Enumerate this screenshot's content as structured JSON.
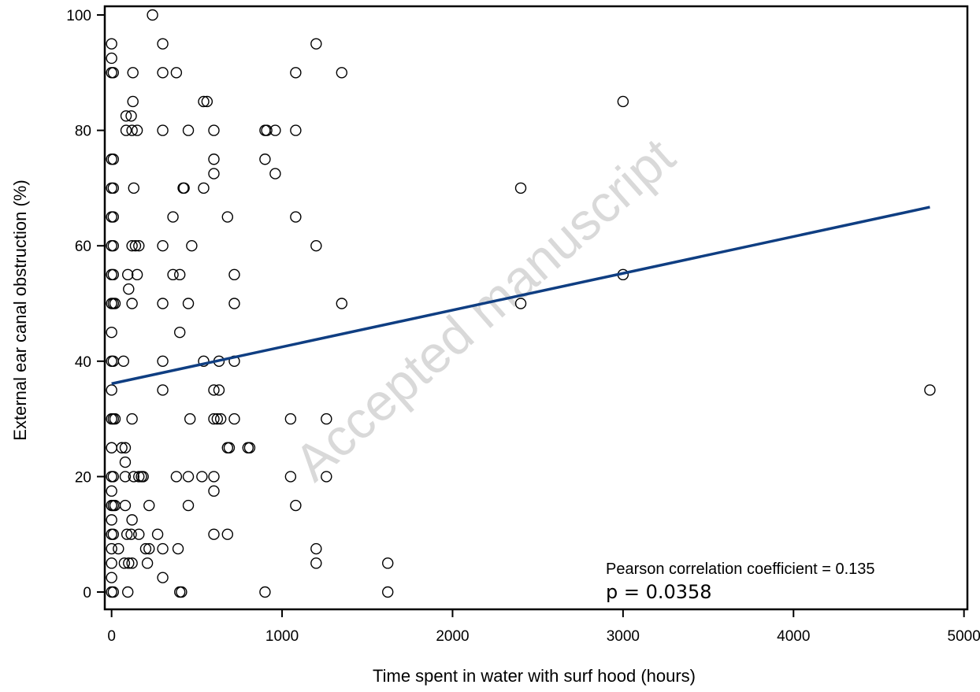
{
  "chart_data": {
    "type": "scatter",
    "title": "",
    "xlabel": "Time spent in water with surf hood (hours)",
    "ylabel": "External ear canal obstruction (%)",
    "xlim": [
      -40,
      5020
    ],
    "ylim": [
      -3,
      101.5
    ],
    "xticks": [
      0,
      1000,
      2000,
      3000,
      4000,
      5000
    ],
    "yticks": [
      0,
      20,
      40,
      60,
      80,
      100
    ],
    "xtick_labels": [
      "0",
      "1000",
      "2000",
      "3000",
      "4000",
      "5000"
    ],
    "ytick_labels": [
      "0",
      "20",
      "40",
      "60",
      "80",
      "100"
    ],
    "grid": false,
    "legend": "none",
    "points": [
      [
        0,
        95
      ],
      [
        0,
        92.5
      ],
      [
        0,
        90
      ],
      [
        0,
        75
      ],
      [
        0,
        70
      ],
      [
        0,
        65
      ],
      [
        0,
        60
      ],
      [
        0,
        55
      ],
      [
        0,
        50
      ],
      [
        0,
        45
      ],
      [
        0,
        40
      ],
      [
        0,
        35
      ],
      [
        0,
        30
      ],
      [
        0,
        25
      ],
      [
        0,
        20
      ],
      [
        0,
        17.5
      ],
      [
        0,
        15
      ],
      [
        0,
        12.5
      ],
      [
        0,
        10
      ],
      [
        0,
        7.5
      ],
      [
        0,
        5
      ],
      [
        0,
        2.5
      ],
      [
        0,
        0
      ],
      [
        10,
        90
      ],
      [
        10,
        75
      ],
      [
        10,
        70
      ],
      [
        10,
        65
      ],
      [
        10,
        60
      ],
      [
        10,
        55
      ],
      [
        10,
        50
      ],
      [
        10,
        40
      ],
      [
        10,
        30
      ],
      [
        10,
        20
      ],
      [
        10,
        15
      ],
      [
        10,
        10
      ],
      [
        10,
        0
      ],
      [
        20,
        30
      ],
      [
        20,
        15
      ],
      [
        20,
        50
      ],
      [
        40,
        7.5
      ],
      [
        60,
        25
      ],
      [
        70,
        40
      ],
      [
        75,
        5
      ],
      [
        80,
        22.5
      ],
      [
        80,
        25
      ],
      [
        80,
        20
      ],
      [
        80,
        15
      ],
      [
        85,
        82.5
      ],
      [
        85,
        80
      ],
      [
        90,
        10
      ],
      [
        95,
        55
      ],
      [
        95,
        0
      ],
      [
        100,
        5
      ],
      [
        100,
        52.5
      ],
      [
        115,
        82.5
      ],
      [
        115,
        10
      ],
      [
        120,
        80
      ],
      [
        120,
        60
      ],
      [
        120,
        50
      ],
      [
        120,
        30
      ],
      [
        120,
        12.5
      ],
      [
        120,
        5
      ],
      [
        125,
        90
      ],
      [
        125,
        85
      ],
      [
        130,
        70
      ],
      [
        130,
        20
      ],
      [
        140,
        60
      ],
      [
        150,
        80
      ],
      [
        150,
        55
      ],
      [
        160,
        60
      ],
      [
        160,
        20
      ],
      [
        160,
        10
      ],
      [
        175,
        20
      ],
      [
        185,
        20
      ],
      [
        200,
        7.5
      ],
      [
        210,
        5
      ],
      [
        220,
        7.5
      ],
      [
        220,
        15
      ],
      [
        240,
        100
      ],
      [
        270,
        10
      ],
      [
        300,
        95
      ],
      [
        300,
        90
      ],
      [
        300,
        80
      ],
      [
        300,
        60
      ],
      [
        300,
        50
      ],
      [
        300,
        40
      ],
      [
        300,
        35
      ],
      [
        300,
        7.5
      ],
      [
        300,
        2.5
      ],
      [
        360,
        65
      ],
      [
        360,
        55
      ],
      [
        380,
        90
      ],
      [
        380,
        20
      ],
      [
        390,
        7.5
      ],
      [
        400,
        55
      ],
      [
        400,
        45
      ],
      [
        400,
        0
      ],
      [
        410,
        0
      ],
      [
        420,
        70
      ],
      [
        425,
        70
      ],
      [
        450,
        80
      ],
      [
        450,
        50
      ],
      [
        450,
        20
      ],
      [
        450,
        15
      ],
      [
        460,
        30
      ],
      [
        470,
        60
      ],
      [
        530,
        20
      ],
      [
        540,
        85
      ],
      [
        540,
        70
      ],
      [
        540,
        40
      ],
      [
        560,
        85
      ],
      [
        600,
        80
      ],
      [
        600,
        75
      ],
      [
        600,
        72.5
      ],
      [
        600,
        35
      ],
      [
        600,
        30
      ],
      [
        600,
        20
      ],
      [
        600,
        17.5
      ],
      [
        600,
        10
      ],
      [
        620,
        30
      ],
      [
        630,
        40
      ],
      [
        630,
        35
      ],
      [
        640,
        30
      ],
      [
        680,
        65
      ],
      [
        680,
        25
      ],
      [
        680,
        10
      ],
      [
        690,
        25
      ],
      [
        720,
        55
      ],
      [
        720,
        50
      ],
      [
        720,
        40
      ],
      [
        720,
        30
      ],
      [
        800,
        25
      ],
      [
        810,
        25
      ],
      [
        900,
        80
      ],
      [
        900,
        75
      ],
      [
        900,
        0
      ],
      [
        910,
        80
      ],
      [
        960,
        80
      ],
      [
        960,
        72.5
      ],
      [
        1050,
        30
      ],
      [
        1050,
        20
      ],
      [
        1080,
        90
      ],
      [
        1080,
        80
      ],
      [
        1080,
        65
      ],
      [
        1080,
        15
      ],
      [
        1200,
        95
      ],
      [
        1200,
        60
      ],
      [
        1200,
        7.5
      ],
      [
        1200,
        5
      ],
      [
        1260,
        30
      ],
      [
        1260,
        20
      ],
      [
        1350,
        90
      ],
      [
        1350,
        50
      ],
      [
        1620,
        5
      ],
      [
        1620,
        0
      ],
      [
        2400,
        70
      ],
      [
        2400,
        50
      ],
      [
        3000,
        85
      ],
      [
        3000,
        55
      ],
      [
        4800,
        35
      ]
    ],
    "trend_line": {
      "x": [
        0,
        4800
      ],
      "y": [
        36.1,
        66.7
      ],
      "color": "#0f3e82"
    },
    "marker_color": "#000000",
    "annotations": {
      "pearson": "Pearson correlation coefficient =  0.135",
      "p_value": "p = 0.0358"
    },
    "watermark": "Accepted manuscript"
  }
}
